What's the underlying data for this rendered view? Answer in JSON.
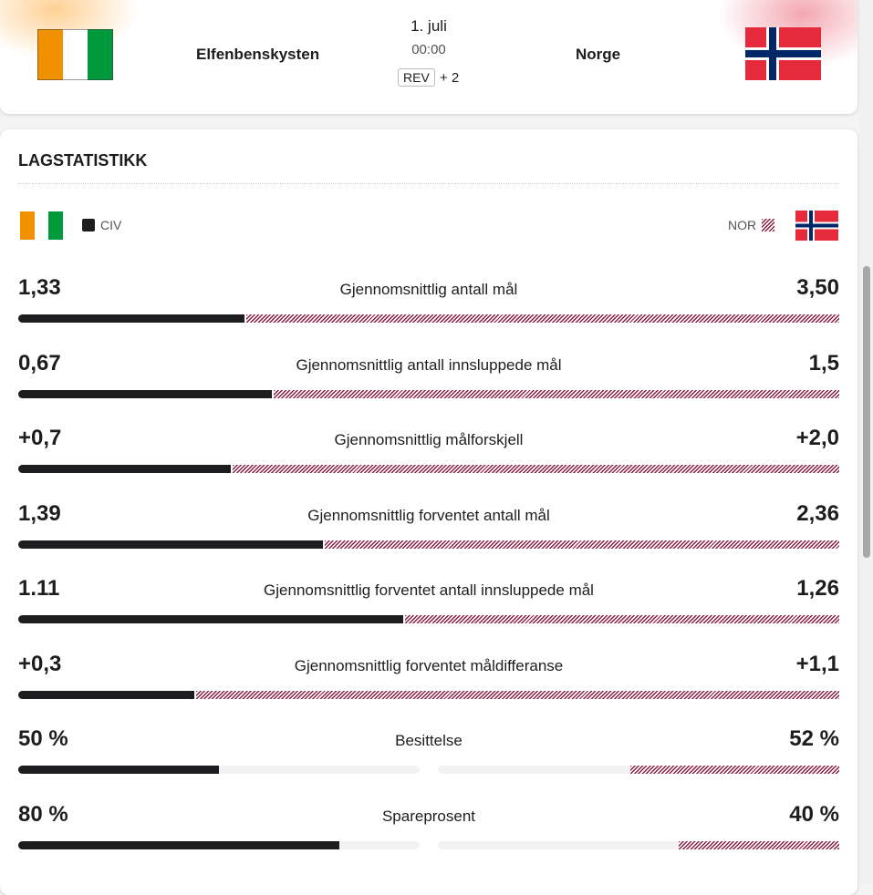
{
  "match": {
    "home": "Elfenbenskysten",
    "away": "Norge",
    "date": "1. juli",
    "time": "00:00",
    "channel": "REV",
    "more_channels": "+ 2"
  },
  "stats": {
    "title": "LAGSTATISTIKK",
    "home_code": "CIV",
    "away_code": "NOR",
    "rows": [
      {
        "label": "Gjennomsnittlig antall mål",
        "kind": "split",
        "home": {
          "value": 1.33,
          "label": "1,33"
        },
        "away": {
          "value": 3.5,
          "label": "3,50"
        }
      },
      {
        "label": "Gjennomsnittlig antall innsluppede mål",
        "kind": "split",
        "home": {
          "value": 0.67,
          "label": "0,67"
        },
        "away": {
          "value": 1.5,
          "label": "1,5"
        }
      },
      {
        "label": "Gjennomsnittlig målforskjell",
        "kind": "split",
        "home": {
          "value": 0.7,
          "label": "+0,7"
        },
        "away": {
          "value": 2.0,
          "label": "+2,0"
        }
      },
      {
        "label": "Gjennomsnittlig forventet antall mål",
        "kind": "split",
        "home": {
          "value": 1.39,
          "label": "1,39"
        },
        "away": {
          "value": 2.36,
          "label": "2,36"
        }
      },
      {
        "label": "Gjennomsnittlig forventet antall innsluppede mål",
        "kind": "split",
        "home": {
          "value": 1.11,
          "label": "1.11"
        },
        "away": {
          "value": 1.26,
          "label": "1,26"
        }
      },
      {
        "label": "Gjennomsnittlig forventet måldifferanse",
        "kind": "split",
        "home": {
          "value": 0.3,
          "label": "+0,3"
        },
        "away": {
          "value": 1.1,
          "label": "+1,1"
        }
      },
      {
        "label": "Besittelse",
        "kind": "percent",
        "home": {
          "value": 50,
          "label": "50 %"
        },
        "away": {
          "value": 52,
          "label": "52 %"
        }
      },
      {
        "label": "Spareprosent",
        "kind": "percent",
        "home": {
          "value": 80,
          "label": "80 %"
        },
        "away": {
          "value": 40,
          "label": "40 %"
        }
      }
    ]
  }
}
